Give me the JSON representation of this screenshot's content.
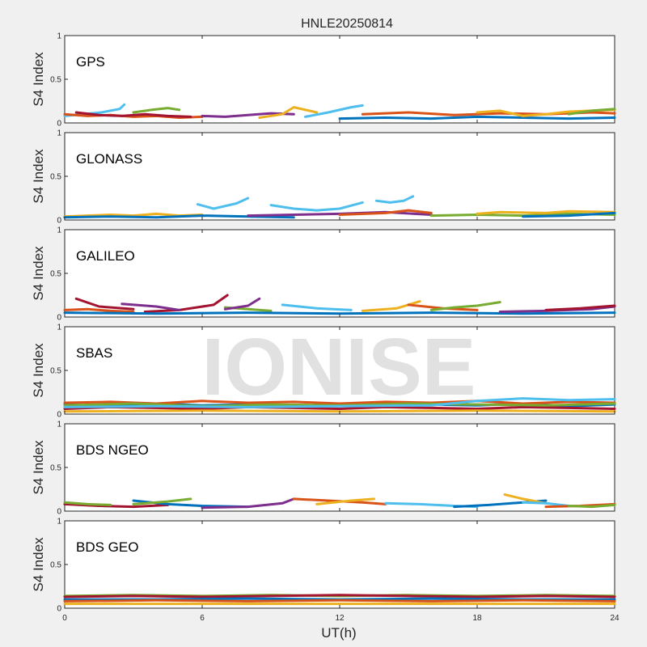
{
  "chart_data": {
    "type": "line",
    "title": "HNLE20250814",
    "xlabel": "UT(h)",
    "ylabel": "S4 Index",
    "xlim": [
      0,
      24
    ],
    "ylim": [
      0,
      1
    ],
    "xticks": [
      "0",
      "6",
      "12",
      "18",
      "24"
    ],
    "yticks": [
      "0",
      "0.5",
      "1"
    ],
    "grid": false,
    "watermark": "IONISE",
    "colors": [
      "#0072BD",
      "#D95319",
      "#EDB120",
      "#7E2F8E",
      "#77AC30",
      "#4DBEEE",
      "#A2142F"
    ],
    "panels": [
      {
        "name": "GPS",
        "series": [
          {
            "color": "#4DBEEE",
            "x": [
              0.0,
              0.8,
              1.6,
              2.4,
              2.6
            ],
            "y": [
              0.08,
              0.1,
              0.12,
              0.16,
              0.21
            ]
          },
          {
            "color": "#D95319",
            "x": [
              0.0,
              1.0,
              2.0,
              3.0,
              4.0,
              5.0,
              6.0
            ],
            "y": [
              0.1,
              0.08,
              0.09,
              0.07,
              0.08,
              0.06,
              0.07
            ]
          },
          {
            "color": "#A2142F",
            "x": [
              0.5,
              1.5,
              2.5,
              3.5,
              4.5,
              5.5
            ],
            "y": [
              0.12,
              0.09,
              0.08,
              0.1,
              0.08,
              0.07
            ]
          },
          {
            "color": "#77AC30",
            "x": [
              3.0,
              3.8,
              4.5,
              5.0
            ],
            "y": [
              0.12,
              0.15,
              0.17,
              0.15
            ]
          },
          {
            "color": "#7E2F8E",
            "x": [
              6.0,
              7.0,
              8.0,
              9.0,
              10.0
            ],
            "y": [
              0.08,
              0.07,
              0.09,
              0.11,
              0.1
            ]
          },
          {
            "color": "#EDB120",
            "x": [
              8.5,
              9.5,
              10.0,
              11.0
            ],
            "y": [
              0.06,
              0.1,
              0.18,
              0.12
            ]
          },
          {
            "color": "#4DBEEE",
            "x": [
              10.5,
              11.5,
              12.5,
              13.0
            ],
            "y": [
              0.07,
              0.12,
              0.18,
              0.2
            ]
          },
          {
            "color": "#0072BD",
            "x": [
              12.0,
              14.0,
              16.0,
              18.0,
              20.0,
              22.0,
              24.0
            ],
            "y": [
              0.05,
              0.06,
              0.05,
              0.07,
              0.06,
              0.05,
              0.06
            ]
          },
          {
            "color": "#D95319",
            "x": [
              13.0,
              15.0,
              17.0,
              19.0,
              21.0,
              23.0,
              24.0
            ],
            "y": [
              0.1,
              0.12,
              0.09,
              0.11,
              0.1,
              0.12,
              0.11
            ]
          },
          {
            "color": "#EDB120",
            "x": [
              18.0,
              19.0,
              20.0,
              21.0,
              22.0,
              24.0
            ],
            "y": [
              0.12,
              0.14,
              0.08,
              0.1,
              0.13,
              0.15
            ]
          },
          {
            "color": "#77AC30",
            "x": [
              22.0,
              23.0,
              24.0
            ],
            "y": [
              0.1,
              0.14,
              0.16
            ]
          }
        ]
      },
      {
        "name": "GLONASS",
        "series": [
          {
            "color": "#EDB120",
            "x": [
              0.0,
              1.0,
              2.0,
              3.0,
              4.0,
              5.0,
              6.0
            ],
            "y": [
              0.04,
              0.05,
              0.06,
              0.05,
              0.07,
              0.05,
              0.06
            ]
          },
          {
            "color": "#0072BD",
            "x": [
              0.0,
              2.0,
              4.0,
              6.0,
              8.0,
              10.0
            ],
            "y": [
              0.03,
              0.04,
              0.03,
              0.05,
              0.04,
              0.03
            ]
          },
          {
            "color": "#4DBEEE",
            "x": [
              5.8,
              6.5,
              7.5,
              8.0
            ],
            "y": [
              0.18,
              0.13,
              0.19,
              0.25
            ]
          },
          {
            "color": "#4DBEEE",
            "x": [
              9.0,
              10.0,
              11.0,
              12.0,
              13.0
            ],
            "y": [
              0.17,
              0.13,
              0.11,
              0.13,
              0.2
            ]
          },
          {
            "color": "#4DBEEE",
            "x": [
              13.6,
              14.2,
              14.8,
              15.2
            ],
            "y": [
              0.22,
              0.2,
              0.22,
              0.27
            ]
          },
          {
            "color": "#7E2F8E",
            "x": [
              8.0,
              10.0,
              12.0,
              14.0,
              16.0
            ],
            "y": [
              0.05,
              0.06,
              0.07,
              0.09,
              0.06
            ]
          },
          {
            "color": "#D95319",
            "x": [
              12.0,
              14.0,
              15.0,
              16.0
            ],
            "y": [
              0.06,
              0.08,
              0.11,
              0.08
            ]
          },
          {
            "color": "#77AC30",
            "x": [
              16.0,
              18.0,
              20.0,
              22.0,
              24.0
            ],
            "y": [
              0.05,
              0.06,
              0.05,
              0.07,
              0.06
            ]
          },
          {
            "color": "#EDB120",
            "x": [
              18.0,
              19.0,
              21.0,
              22.0,
              24.0
            ],
            "y": [
              0.07,
              0.09,
              0.08,
              0.1,
              0.09
            ]
          },
          {
            "color": "#0072BD",
            "x": [
              20.0,
              22.0,
              24.0
            ],
            "y": [
              0.04,
              0.05,
              0.08
            ]
          }
        ]
      },
      {
        "name": "GALILEO",
        "series": [
          {
            "color": "#A2142F",
            "x": [
              0.5,
              1.5,
              3.0
            ],
            "y": [
              0.21,
              0.12,
              0.09
            ]
          },
          {
            "color": "#D95319",
            "x": [
              0.0,
              1.0,
              2.0,
              3.0
            ],
            "y": [
              0.08,
              0.09,
              0.07,
              0.06
            ]
          },
          {
            "color": "#A2142F",
            "x": [
              3.5,
              5.0,
              6.5,
              7.1
            ],
            "y": [
              0.06,
              0.08,
              0.14,
              0.25
            ]
          },
          {
            "color": "#7E2F8E",
            "x": [
              2.5,
              4.0,
              5.0
            ],
            "y": [
              0.15,
              0.12,
              0.08
            ]
          },
          {
            "color": "#77AC30",
            "x": [
              7.0,
              8.0,
              9.0
            ],
            "y": [
              0.11,
              0.09,
              0.07
            ]
          },
          {
            "color": "#7E2F8E",
            "x": [
              7.0,
              8.0,
              8.5
            ],
            "y": [
              0.09,
              0.13,
              0.21
            ]
          },
          {
            "color": "#4DBEEE",
            "x": [
              9.5,
              11.0,
              12.5
            ],
            "y": [
              0.14,
              0.1,
              0.08
            ]
          },
          {
            "color": "#EDB120",
            "x": [
              13.0,
              14.5,
              15.5
            ],
            "y": [
              0.07,
              0.1,
              0.18
            ]
          },
          {
            "color": "#D95319",
            "x": [
              15.0,
              16.5,
              18.0
            ],
            "y": [
              0.14,
              0.1,
              0.08
            ]
          },
          {
            "color": "#0072BD",
            "x": [
              0.0,
              4.0,
              8.0,
              12.0,
              16.0,
              20.0,
              24.0
            ],
            "y": [
              0.05,
              0.04,
              0.05,
              0.04,
              0.05,
              0.04,
              0.05
            ]
          },
          {
            "color": "#77AC30",
            "x": [
              16.0,
              17.0,
              18.0,
              19.0
            ],
            "y": [
              0.08,
              0.11,
              0.13,
              0.17
            ]
          },
          {
            "color": "#7E2F8E",
            "x": [
              19.0,
              21.0,
              23.0,
              24.0
            ],
            "y": [
              0.06,
              0.07,
              0.09,
              0.12
            ]
          },
          {
            "color": "#A2142F",
            "x": [
              21.0,
              22.5,
              24.0
            ],
            "y": [
              0.08,
              0.1,
              0.13
            ]
          }
        ]
      },
      {
        "name": "SBAS",
        "series": [
          {
            "color": "#0072BD",
            "x": [
              0,
              2,
              4,
              6,
              8,
              10,
              12,
              14,
              16,
              18,
              20,
              22,
              24
            ],
            "y": [
              0.11,
              0.09,
              0.12,
              0.1,
              0.11,
              0.09,
              0.12,
              0.1,
              0.11,
              0.1,
              0.12,
              0.09,
              0.11
            ]
          },
          {
            "color": "#D95319",
            "x": [
              0,
              2,
              4,
              6,
              8,
              10,
              12,
              14,
              16,
              18,
              20,
              22,
              24
            ],
            "y": [
              0.13,
              0.14,
              0.12,
              0.15,
              0.13,
              0.14,
              0.12,
              0.14,
              0.13,
              0.15,
              0.12,
              0.14,
              0.13
            ]
          },
          {
            "color": "#A2142F",
            "x": [
              0,
              2,
              4,
              6,
              8,
              10,
              12,
              14,
              16,
              18,
              20,
              22,
              24
            ],
            "y": [
              0.06,
              0.08,
              0.07,
              0.06,
              0.08,
              0.07,
              0.06,
              0.08,
              0.07,
              0.06,
              0.08,
              0.07,
              0.06
            ]
          },
          {
            "color": "#77AC30",
            "x": [
              0,
              3,
              6,
              9,
              12,
              15,
              18,
              21,
              24
            ],
            "y": [
              0.1,
              0.12,
              0.09,
              0.11,
              0.1,
              0.12,
              0.11,
              0.1,
              0.12
            ]
          },
          {
            "color": "#4DBEEE",
            "x": [
              0,
              4,
              8,
              12,
              16,
              18,
              20,
              22,
              24
            ],
            "y": [
              0.08,
              0.09,
              0.08,
              0.09,
              0.1,
              0.15,
              0.18,
              0.16,
              0.17
            ]
          },
          {
            "color": "#EDB120",
            "x": [
              0,
              6,
              12,
              18,
              24
            ],
            "y": [
              0.03,
              0.04,
              0.03,
              0.04,
              0.03
            ]
          }
        ]
      },
      {
        "name": "BDS NGEO",
        "series": [
          {
            "color": "#A2142F",
            "x": [
              0.0,
              1.5,
              3.0,
              4.5
            ],
            "y": [
              0.08,
              0.06,
              0.05,
              0.07
            ]
          },
          {
            "color": "#77AC30",
            "x": [
              0.0,
              1.0,
              2.0
            ],
            "y": [
              0.1,
              0.08,
              0.07
            ]
          },
          {
            "color": "#0072BD",
            "x": [
              3.0,
              4.5,
              6.0,
              8.0
            ],
            "y": [
              0.12,
              0.08,
              0.06,
              0.05
            ]
          },
          {
            "color": "#77AC30",
            "x": [
              3.0,
              4.5,
              5.5
            ],
            "y": [
              0.08,
              0.11,
              0.14
            ]
          },
          {
            "color": "#7E2F8E",
            "x": [
              6.0,
              8.0,
              9.5,
              10.0
            ],
            "y": [
              0.04,
              0.05,
              0.09,
              0.14
            ]
          },
          {
            "color": "#D95319",
            "x": [
              10.0,
              11.5,
              13.0,
              14.0
            ],
            "y": [
              0.14,
              0.12,
              0.1,
              0.08
            ]
          },
          {
            "color": "#EDB120",
            "x": [
              11.0,
              12.5,
              13.5
            ],
            "y": [
              0.08,
              0.12,
              0.14
            ]
          },
          {
            "color": "#4DBEEE",
            "x": [
              14.0,
              15.5,
              17.0,
              18.0
            ],
            "y": [
              0.09,
              0.08,
              0.06,
              0.05
            ]
          },
          {
            "color": "#0072BD",
            "x": [
              17.0,
              18.5,
              20.0,
              21.0
            ],
            "y": [
              0.05,
              0.07,
              0.1,
              0.12
            ]
          },
          {
            "color": "#EDB120",
            "x": [
              19.2,
              20.0,
              21.0
            ],
            "y": [
              0.19,
              0.14,
              0.09
            ]
          },
          {
            "color": "#4DBEEE",
            "x": [
              20.0,
              21.0,
              22.0
            ],
            "y": [
              0.1,
              0.09,
              0.06
            ]
          },
          {
            "color": "#D95319",
            "x": [
              21.0,
              22.5,
              24.0
            ],
            "y": [
              0.05,
              0.06,
              0.08
            ]
          },
          {
            "color": "#77AC30",
            "x": [
              22.0,
              23.0,
              24.0
            ],
            "y": [
              0.06,
              0.05,
              0.07
            ]
          }
        ]
      },
      {
        "name": "BDS GEO",
        "series": [
          {
            "color": "#77AC30",
            "x": [
              0,
              3,
              6,
              9,
              12,
              15,
              18,
              21,
              24
            ],
            "y": [
              0.14,
              0.15,
              0.14,
              0.15,
              0.14,
              0.15,
              0.14,
              0.15,
              0.14
            ]
          },
          {
            "color": "#A2142F",
            "x": [
              0,
              3,
              6,
              9,
              12,
              15,
              18,
              21,
              24
            ],
            "y": [
              0.13,
              0.14,
              0.13,
              0.14,
              0.15,
              0.14,
              0.13,
              0.14,
              0.13
            ]
          },
          {
            "color": "#0072BD",
            "x": [
              0,
              4,
              8,
              12,
              16,
              20,
              24
            ],
            "y": [
              0.1,
              0.1,
              0.11,
              0.1,
              0.11,
              0.1,
              0.1
            ]
          },
          {
            "color": "#D95319",
            "x": [
              0,
              4,
              8,
              12,
              16,
              20,
              24
            ],
            "y": [
              0.08,
              0.09,
              0.08,
              0.09,
              0.08,
              0.09,
              0.08
            ]
          },
          {
            "color": "#EDB120",
            "x": [
              0,
              6,
              12,
              18,
              24
            ],
            "y": [
              0.05,
              0.05,
              0.05,
              0.05,
              0.05
            ]
          }
        ]
      }
    ]
  }
}
